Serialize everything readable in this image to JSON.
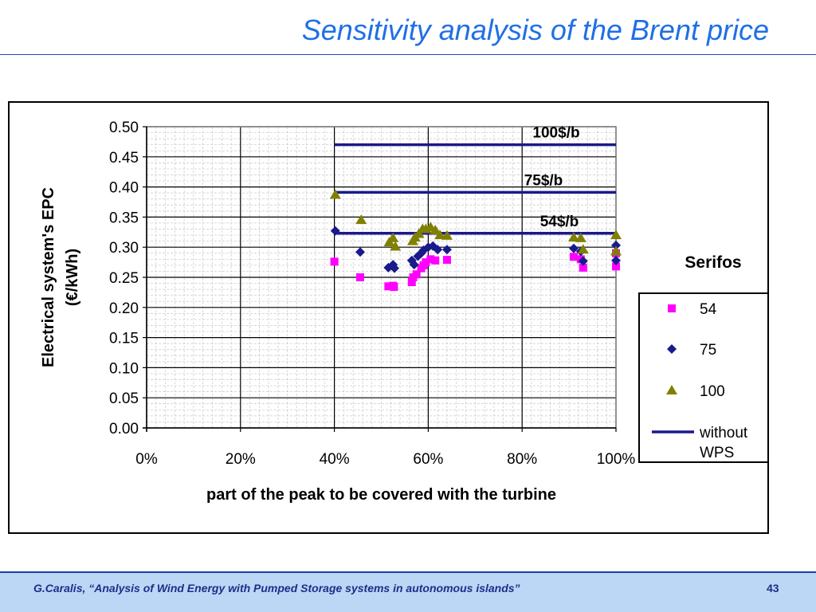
{
  "slide": {
    "title": "Sensitivity analysis of the Brent price",
    "footer": "G.Caralis, “Analysis of Wind Energy with Pumped Storage systems in autonomous islands”",
    "page_number": "43"
  },
  "colors": {
    "title": "#1f6fe6",
    "series_54": "#ff00ff",
    "series_75": "#1a1a8c",
    "series_100": "#808000",
    "reference_line": "#1a1a8c",
    "footer_bg": "#bcd7f5"
  },
  "chart_data": {
    "type": "scatter",
    "xlabel": "part of the peak to be covered with the turbine",
    "ylabel_lines": [
      "Electrical system's EPC",
      "(€/kWh)"
    ],
    "xlim": [
      0,
      100
    ],
    "ylim": [
      0,
      0.5
    ],
    "x_ticks": [
      "0%",
      "20%",
      "40%",
      "60%",
      "80%",
      "100%"
    ],
    "y_ticks": [
      "0.00",
      "0.05",
      "0.10",
      "0.15",
      "0.20",
      "0.25",
      "0.30",
      "0.35",
      "0.40",
      "0.45",
      "0.50"
    ],
    "grid": true,
    "legend_title": "Serifos",
    "legend_position": "right",
    "series": [
      {
        "name": "54",
        "marker": "square",
        "points": [
          [
            40,
            0.276
          ],
          [
            45.5,
            0.25
          ],
          [
            51.5,
            0.235
          ],
          [
            52.5,
            0.236
          ],
          [
            52.7,
            0.234
          ],
          [
            56.5,
            0.242
          ],
          [
            56.8,
            0.25
          ],
          [
            57.5,
            0.255
          ],
          [
            58.5,
            0.265
          ],
          [
            59,
            0.27
          ],
          [
            59.5,
            0.275
          ],
          [
            60.5,
            0.28
          ],
          [
            61.5,
            0.278
          ],
          [
            64,
            0.279
          ],
          [
            91,
            0.284
          ],
          [
            92.5,
            0.28
          ],
          [
            93,
            0.266
          ],
          [
            100,
            0.29
          ],
          [
            100,
            0.268
          ]
        ]
      },
      {
        "name": "75",
        "marker": "diamond",
        "points": [
          [
            40.2,
            0.327
          ],
          [
            45.5,
            0.292
          ],
          [
            51.5,
            0.266
          ],
          [
            52.5,
            0.271
          ],
          [
            52.8,
            0.265
          ],
          [
            56.5,
            0.278
          ],
          [
            57,
            0.271
          ],
          [
            57.8,
            0.285
          ],
          [
            58.5,
            0.29
          ],
          [
            59,
            0.295
          ],
          [
            60,
            0.3
          ],
          [
            61,
            0.302
          ],
          [
            62,
            0.296
          ],
          [
            64,
            0.296
          ],
          [
            91,
            0.298
          ],
          [
            92.5,
            0.293
          ],
          [
            93,
            0.277
          ],
          [
            100,
            0.303
          ],
          [
            100,
            0.278
          ]
        ]
      },
      {
        "name": "100",
        "marker": "triangle",
        "points": [
          [
            40.2,
            0.387
          ],
          [
            45.7,
            0.345
          ],
          [
            51.7,
            0.308
          ],
          [
            52.5,
            0.315
          ],
          [
            53,
            0.301
          ],
          [
            56.7,
            0.31
          ],
          [
            57.2,
            0.316
          ],
          [
            58,
            0.322
          ],
          [
            58.8,
            0.33
          ],
          [
            59.5,
            0.33
          ],
          [
            60.5,
            0.333
          ],
          [
            61.5,
            0.328
          ],
          [
            62.5,
            0.32
          ],
          [
            64,
            0.319
          ],
          [
            91,
            0.316
          ],
          [
            92.5,
            0.315
          ],
          [
            93,
            0.296
          ],
          [
            100,
            0.32
          ],
          [
            100,
            0.293
          ]
        ]
      }
    ],
    "reference_lines": {
      "legend_label_lines": [
        "without",
        "WPS"
      ],
      "x_start": 40,
      "x_end": 100,
      "lines": [
        {
          "label": "100$/b",
          "y": 0.47
        },
        {
          "label": "75$/b",
          "y": 0.391
        },
        {
          "label": "54$/b",
          "y": 0.323
        }
      ]
    }
  }
}
